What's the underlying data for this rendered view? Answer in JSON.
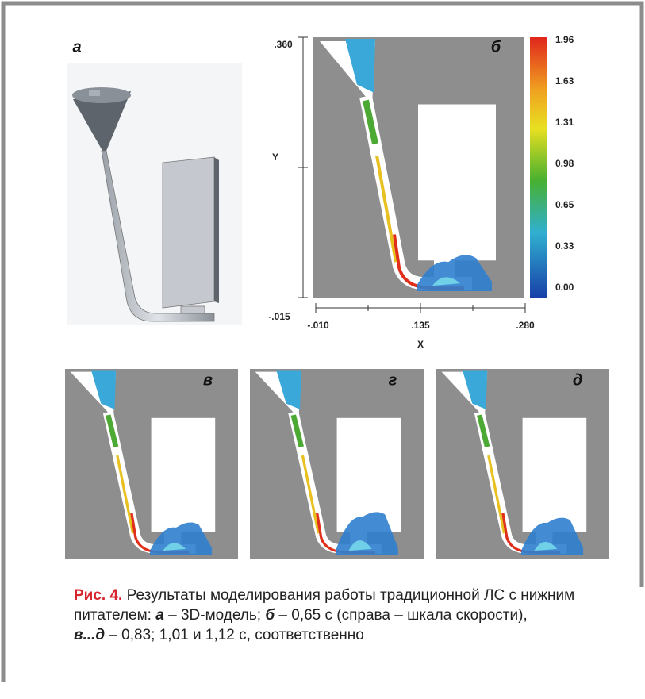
{
  "figure": {
    "panels": [
      {
        "label": "а"
      },
      {
        "label": "б"
      },
      {
        "label": "в"
      },
      {
        "label": "г"
      },
      {
        "label": "д"
      }
    ],
    "y_axis": {
      "name": "Y",
      "top": ".360",
      "bottom": "-.015"
    },
    "x_axis": {
      "name": "X",
      "ticks": [
        "-.010",
        ".135",
        ".280"
      ]
    },
    "colorbar": {
      "ticks": [
        "1.96",
        "1.63",
        "1.31",
        "0.98",
        "0.65",
        "0.33",
        "0.00"
      ]
    }
  },
  "caption": {
    "label": "Рис. 4.",
    "parts": [
      " Результаты моделирования работы традиционной ЛС с нижним питателем: ",
      "а",
      " – 3D-модель; ",
      "б",
      " – 0,65 с (справа – шкала скорости),",
      "в...д",
      " – 0,83; 1,01 и 1,12 с, соответственно"
    ]
  }
}
